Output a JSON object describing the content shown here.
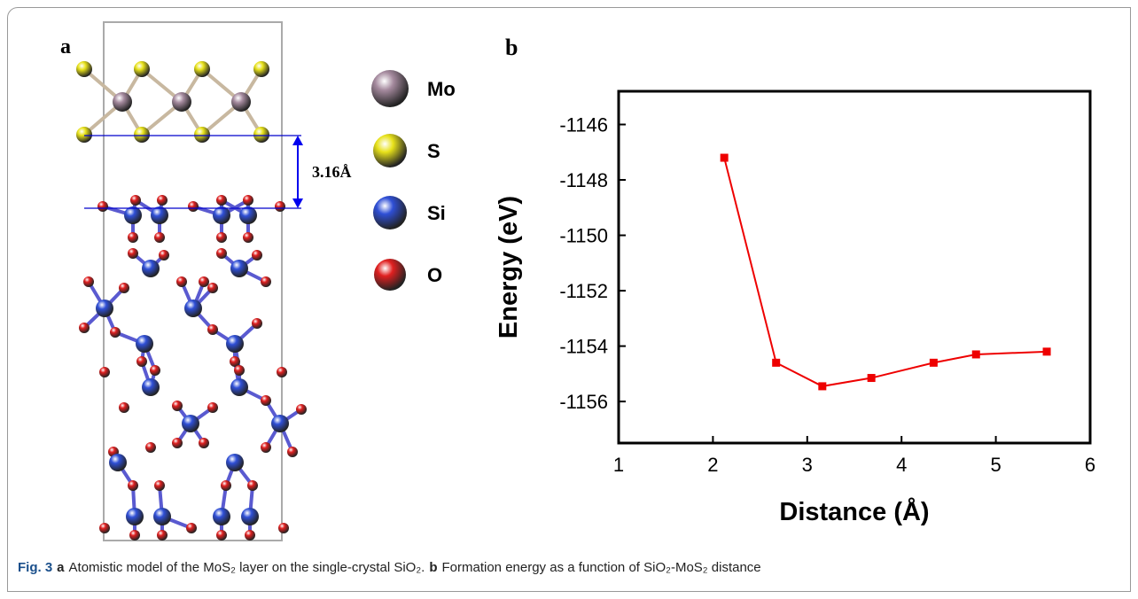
{
  "panel_a": {
    "label": "a",
    "distance_label": "3.16Å",
    "legend": [
      {
        "label": "Mo",
        "color": "#a58a9e"
      },
      {
        "label": "S",
        "color": "#e8e21a"
      },
      {
        "label": "Si",
        "color": "#2f4fd6"
      },
      {
        "label": "O",
        "color": "#e02020"
      }
    ]
  },
  "chart_data": {
    "type": "line",
    "panel_label": "b",
    "x_label": "Distance (Å)",
    "y_label": "Energy (eV)",
    "x": [
      2.12,
      2.67,
      3.16,
      3.68,
      4.34,
      4.79,
      5.54
    ],
    "series": [
      {
        "name": null,
        "color": "#ee0000",
        "values": [
          -1147.2,
          -1154.6,
          -1155.45,
          -1155.15,
          -1154.6,
          -1154.3,
          -1154.2
        ]
      }
    ],
    "xlim": [
      1,
      6
    ],
    "xticks": [
      1,
      2,
      3,
      4,
      5,
      6
    ],
    "ylim": [
      -1157.5,
      -1144.8
    ],
    "yticks": [
      -1156,
      -1154,
      -1152,
      -1150,
      -1148,
      -1146
    ]
  },
  "caption": [
    {
      "text": "Fig. 3",
      "bold": true
    },
    {
      "text": "a",
      "bold": true
    },
    {
      "text": "Atomistic model of the MoS₂ layer on the single-crystal SiO₂.",
      "bold": false
    },
    {
      "text": "b",
      "bold": true
    },
    {
      "text": "Formation energy as a function of SiO₂-MoS₂ distance",
      "bold": false
    }
  ]
}
